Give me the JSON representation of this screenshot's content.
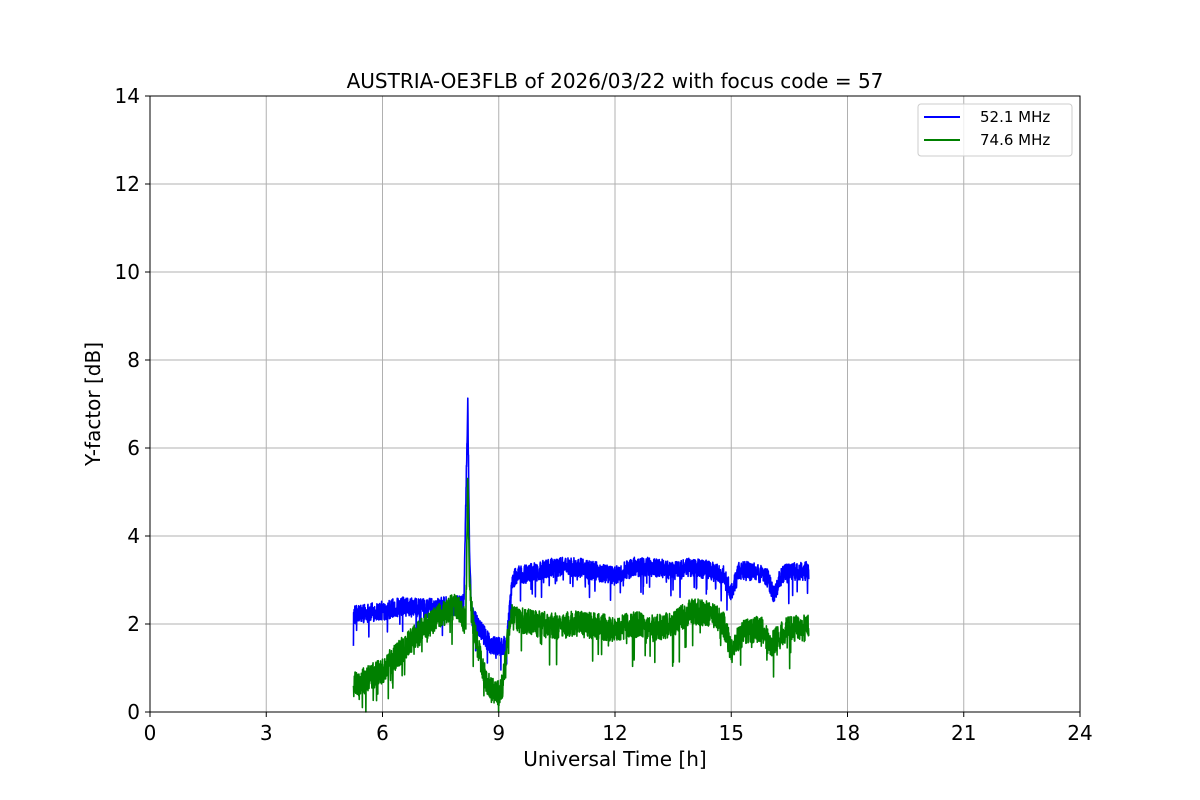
{
  "chart_data": {
    "type": "line",
    "title": "AUSTRIA-OE3FLB of 2026/03/22 with focus code = 57",
    "xlabel": "Universal Time [h]",
    "ylabel": "Y-factor [dB]",
    "xlim": [
      0,
      24
    ],
    "ylim": [
      0,
      14
    ],
    "xticks": [
      0,
      3,
      6,
      9,
      12,
      15,
      18,
      21,
      24
    ],
    "yticks": [
      0,
      2,
      4,
      6,
      8,
      10,
      12,
      14
    ],
    "grid": true,
    "legend_position": "top-right",
    "series": [
      {
        "name": "52.1 MHz",
        "color": "#0000ff",
        "noise": 0.22,
        "x": [
          5.25,
          5.5,
          6.0,
          6.5,
          7.0,
          7.5,
          7.9,
          8.1,
          8.2,
          8.25,
          8.3,
          8.5,
          8.8,
          9.0,
          9.2,
          9.35,
          9.5,
          10.0,
          10.5,
          11.0,
          11.5,
          12.0,
          12.5,
          13.0,
          13.5,
          14.0,
          14.5,
          14.8,
          15.0,
          15.2,
          15.5,
          15.9,
          16.1,
          16.3,
          16.6,
          17.0
        ],
        "y": [
          2.2,
          2.25,
          2.3,
          2.4,
          2.35,
          2.4,
          2.4,
          2.5,
          7.0,
          3.5,
          2.2,
          1.9,
          1.5,
          1.5,
          1.5,
          3.0,
          3.1,
          3.2,
          3.3,
          3.3,
          3.2,
          3.1,
          3.3,
          3.3,
          3.2,
          3.3,
          3.2,
          3.1,
          2.7,
          3.2,
          3.2,
          3.1,
          2.7,
          3.1,
          3.2,
          3.2
        ]
      },
      {
        "name": "74.6 MHz",
        "color": "#008000",
        "noise": 0.3,
        "x": [
          5.25,
          5.5,
          6.0,
          6.5,
          7.0,
          7.5,
          7.8,
          8.0,
          8.15,
          8.2,
          8.25,
          8.35,
          8.6,
          8.8,
          9.0,
          9.1,
          9.3,
          9.5,
          10.0,
          10.5,
          11.0,
          11.5,
          12.0,
          12.5,
          13.0,
          13.5,
          14.0,
          14.5,
          14.8,
          15.0,
          15.3,
          15.8,
          16.0,
          16.2,
          16.5,
          17.0
        ],
        "y": [
          0.6,
          0.7,
          0.95,
          1.4,
          1.85,
          2.2,
          2.4,
          2.3,
          2.0,
          5.3,
          2.8,
          1.9,
          0.9,
          0.5,
          0.4,
          0.6,
          2.2,
          2.1,
          2.0,
          1.95,
          2.0,
          1.95,
          1.9,
          2.0,
          1.9,
          2.0,
          2.3,
          2.2,
          2.0,
          1.4,
          1.8,
          1.9,
          1.5,
          1.7,
          1.9,
          1.9
        ]
      }
    ]
  }
}
